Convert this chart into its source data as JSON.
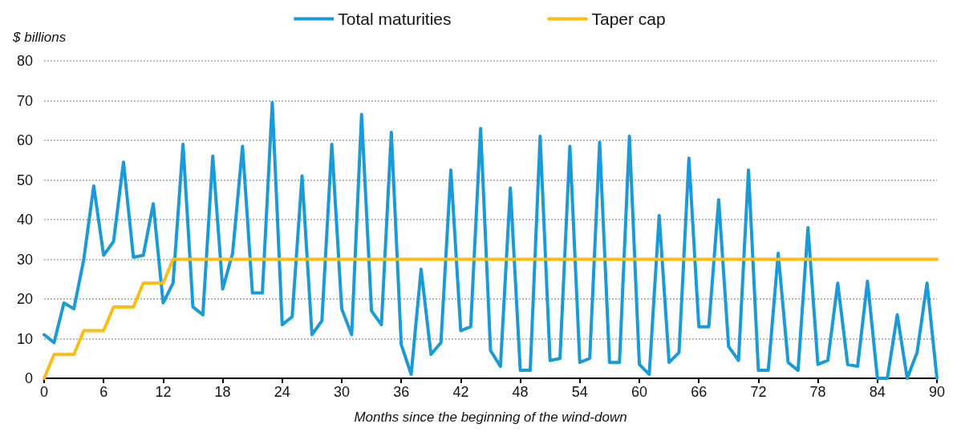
{
  "chart_data": {
    "type": "line",
    "xlabel": "Months since the beginning of the wind-down",
    "ylabel": "$ billions",
    "x": [
      0,
      1,
      2,
      3,
      4,
      5,
      6,
      7,
      8,
      9,
      10,
      11,
      12,
      13,
      14,
      15,
      16,
      17,
      18,
      19,
      20,
      21,
      22,
      23,
      24,
      25,
      26,
      27,
      28,
      29,
      30,
      31,
      32,
      33,
      34,
      35,
      36,
      37,
      38,
      39,
      40,
      41,
      42,
      43,
      44,
      45,
      46,
      47,
      48,
      49,
      50,
      51,
      52,
      53,
      54,
      55,
      56,
      57,
      58,
      59,
      60,
      61,
      62,
      63,
      64,
      65,
      66,
      67,
      68,
      69,
      70,
      71,
      72,
      73,
      74,
      75,
      76,
      77,
      78,
      79,
      80,
      81,
      82,
      83,
      84,
      85,
      86,
      87,
      88,
      89,
      90
    ],
    "series": [
      {
        "name": "Total maturities",
        "color": "#1a9ad6",
        "values": [
          11,
          9,
          19,
          17.5,
          30,
          48.5,
          31,
          34.5,
          54.5,
          30.5,
          31,
          44,
          19,
          24,
          59,
          18,
          16,
          56,
          22.5,
          31.5,
          58.5,
          21.5,
          21.5,
          69.5,
          13.5,
          15.5,
          51,
          11,
          14.5,
          59,
          17.5,
          11,
          66.5,
          17,
          13.5,
          62,
          8.5,
          1,
          27.5,
          6,
          9,
          52.5,
          12,
          13,
          63,
          7,
          3,
          48,
          2,
          2,
          61,
          4.5,
          5,
          58.5,
          4,
          5,
          59.5,
          4,
          4,
          61,
          3.5,
          1,
          41,
          4,
          6.5,
          55.5,
          13,
          13,
          45,
          8,
          4.5,
          52.5,
          2,
          2,
          31.5,
          4,
          2,
          38,
          3.5,
          4.5,
          24,
          3.5,
          3,
          24.5,
          0,
          0,
          16,
          0,
          6.5,
          24,
          0
        ]
      },
      {
        "name": "Taper cap",
        "color": "#fcbd12",
        "values": [
          0,
          6,
          6,
          6,
          12,
          12,
          12,
          18,
          18,
          18,
          24,
          24,
          24,
          30,
          30,
          30,
          30,
          30,
          30,
          30,
          30,
          30,
          30,
          30,
          30,
          30,
          30,
          30,
          30,
          30,
          30,
          30,
          30,
          30,
          30,
          30,
          30,
          30,
          30,
          30,
          30,
          30,
          30,
          30,
          30,
          30,
          30,
          30,
          30,
          30,
          30,
          30,
          30,
          30,
          30,
          30,
          30,
          30,
          30,
          30,
          30,
          30,
          30,
          30,
          30,
          30,
          30,
          30,
          30,
          30,
          30,
          30,
          30,
          30,
          30,
          30,
          30,
          30,
          30,
          30,
          30,
          30,
          30,
          30,
          30,
          30,
          30,
          30,
          30,
          30,
          30
        ]
      }
    ],
    "xlim": [
      0,
      90
    ],
    "xticks": [
      0,
      6,
      12,
      18,
      24,
      30,
      36,
      42,
      48,
      54,
      60,
      66,
      72,
      78,
      84,
      90
    ],
    "ylim": [
      0,
      80
    ],
    "yticks": [
      0,
      10,
      20,
      30,
      40,
      50,
      60,
      70,
      80
    ],
    "grid": "y",
    "legend": "top",
    "marker": "none",
    "line_style": "solid"
  }
}
